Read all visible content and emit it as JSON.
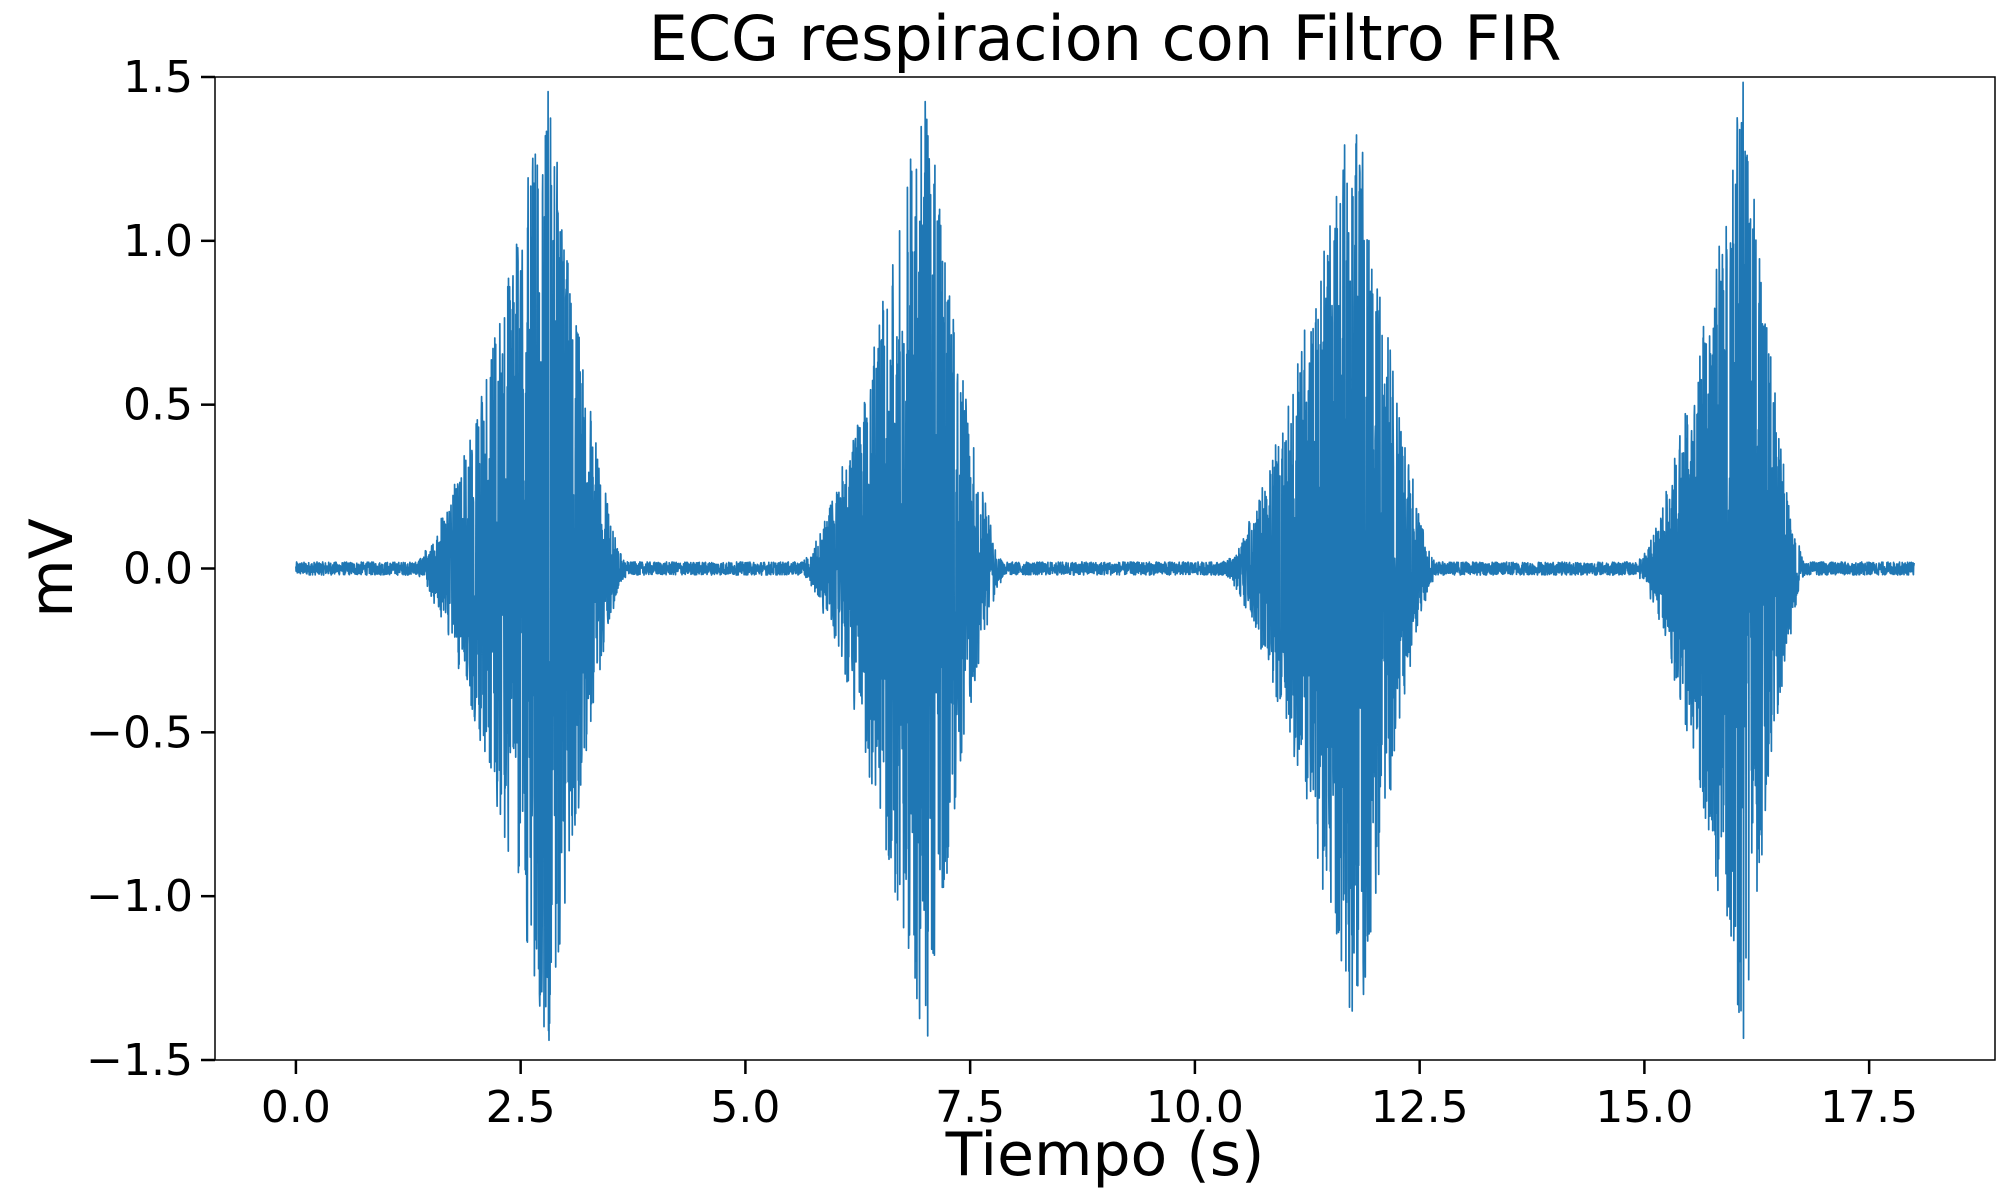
{
  "chart_data": {
    "type": "line",
    "title": "ECG respiracion con Filtro FIR",
    "xlabel": "Tiempo (s)",
    "ylabel": "mV",
    "xlim": [
      -0.9,
      18.9
    ],
    "ylim": [
      -1.5,
      1.5
    ],
    "xticks": [
      0.0,
      2.5,
      5.0,
      7.5,
      10.0,
      12.5,
      15.0,
      17.5
    ],
    "xtick_labels": [
      "0.0",
      "2.5",
      "5.0",
      "7.5",
      "10.0",
      "12.5",
      "15.0",
      "17.5"
    ],
    "yticks": [
      1.5,
      1.0,
      0.5,
      0.0,
      -0.5,
      -1.0,
      -1.5
    ],
    "ytick_labels": [
      "1.5",
      "1.0",
      "0.5",
      "0.0",
      "−0.5",
      "−1.0",
      "−1.5"
    ],
    "grid": false,
    "legend": "none",
    "series": [
      {
        "color": "#1f77b4",
        "x_range": [
          0.0,
          18.0
        ],
        "baseline_mV": 0.0,
        "baseline_noise_amplitude_mV": 0.02,
        "bursts": [
          {
            "start": 1.3,
            "end": 3.7,
            "peak_time": 2.8,
            "peak_amplitude": 1.5
          },
          {
            "start": 5.6,
            "end": 7.9,
            "peak_time": 7.0,
            "peak_amplitude": 1.5
          },
          {
            "start": 10.3,
            "end": 12.7,
            "peak_time": 11.8,
            "peak_amplitude": 1.5
          },
          {
            "start": 14.9,
            "end": 16.8,
            "peak_time": 16.1,
            "peak_amplitude": 1.5
          }
        ]
      }
    ]
  }
}
